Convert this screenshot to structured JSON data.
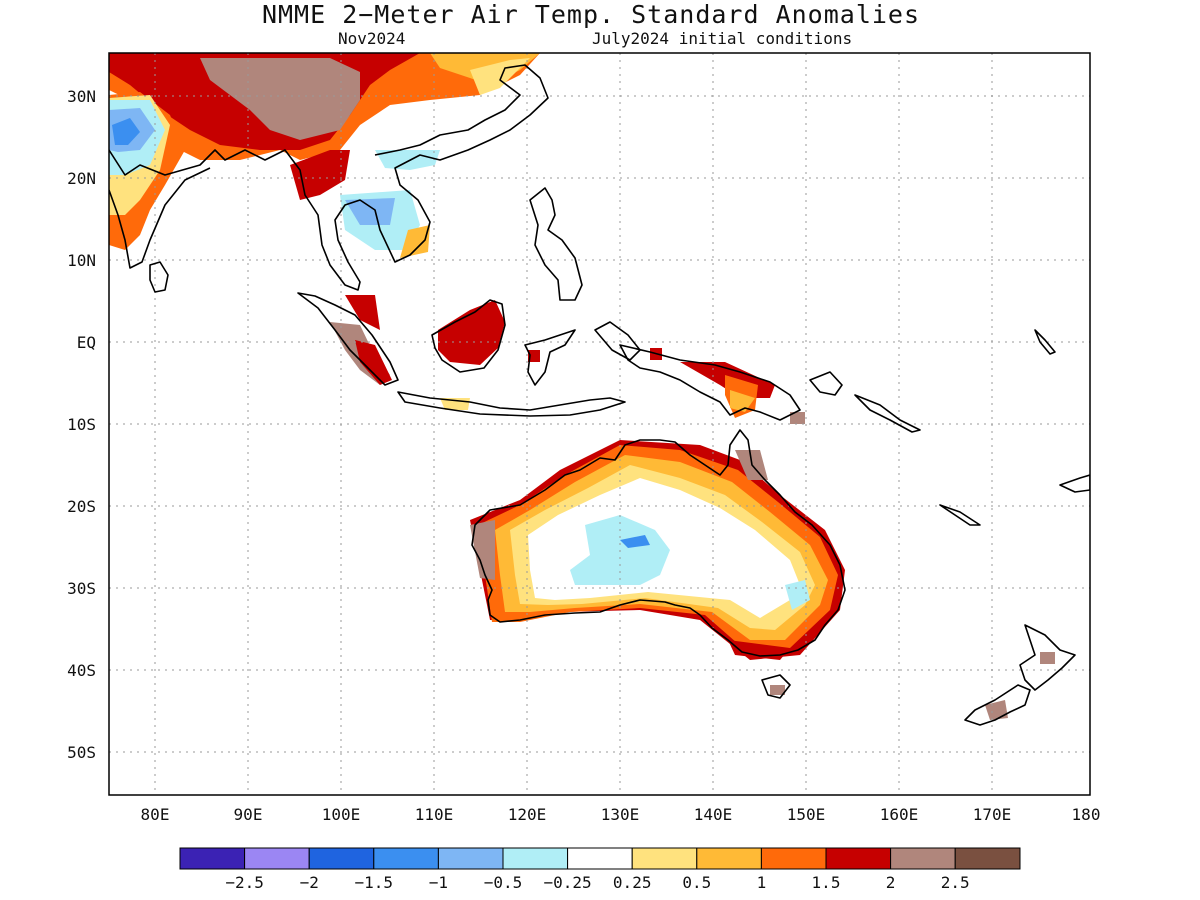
{
  "title": "NMME 2−Meter Air Temp. Standard Anomalies",
  "subtitle_left": "Nov2024",
  "subtitle_right": "July2024 initial conditions",
  "lat_labels": [
    "30N",
    "20N",
    "10N",
    "EQ",
    "10S",
    "20S",
    "30S",
    "40S",
    "50S"
  ],
  "lon_labels": [
    "80E",
    "90E",
    "100E",
    "110E",
    "120E",
    "130E",
    "140E",
    "150E",
    "160E",
    "170E",
    "180"
  ],
  "colorbar": {
    "colors": [
      "#3b22b4",
      "#9b86f3",
      "#1f64e0",
      "#3b8ff0",
      "#7eb6f4",
      "#b0eef6",
      "#ffffff",
      "#ffe27e",
      "#ffba36",
      "#ff6a0a",
      "#c60000",
      "#b0867c",
      "#7a5040"
    ],
    "labels": [
      "−2.5",
      "−2",
      "−1.5",
      "−1",
      "−0.5",
      "−0.25",
      "0.25",
      "0.5",
      "1",
      "1.5",
      "2",
      "2.5"
    ]
  },
  "colors": {
    "land_outline": "#000000",
    "grid": "#9a9a9a"
  }
}
